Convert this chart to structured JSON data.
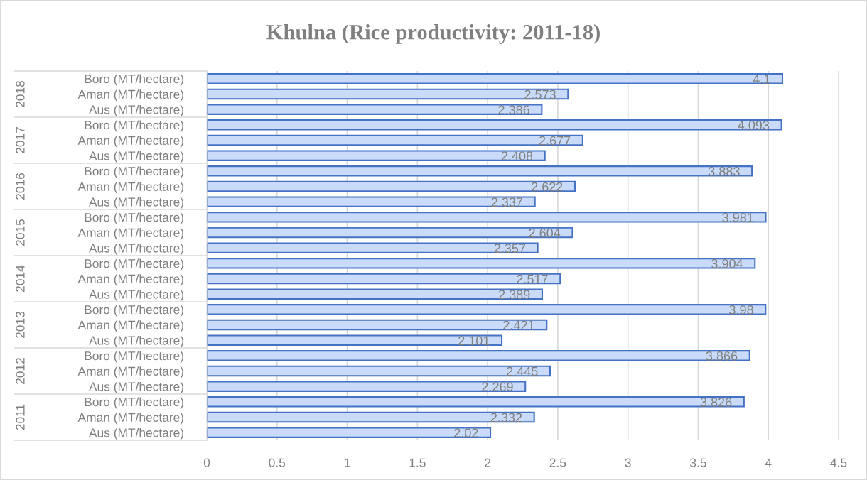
{
  "chart_data": {
    "type": "bar",
    "orientation": "horizontal",
    "title": "Khulna (Rice productivity: 2011-18)",
    "categories": [
      "Boro (MT/hectare)",
      "Aman (MT/hectare)",
      "Aus (MT/hectare)",
      "Boro (MT/hectare)",
      "Aman (MT/hectare)",
      "Aus (MT/hectare)",
      "Boro (MT/hectare)",
      "Aman (MT/hectare)",
      "Aus (MT/hectare)",
      "Boro (MT/hectare)",
      "Aman (MT/hectare)",
      "Aus (MT/hectare)",
      "Boro (MT/hectare)",
      "Aman (MT/hectare)",
      "Aus (MT/hectare)",
      "Boro (MT/hectare)",
      "Aman (MT/hectare)",
      "Aus (MT/hectare)",
      "Boro (MT/hectare)",
      "Aman (MT/hectare)",
      "Aus (MT/hectare)",
      "Boro (MT/hectare)",
      "Aman (MT/hectare)",
      "Aus (MT/hectare)"
    ],
    "values": [
      4.1,
      2.573,
      2.386,
      4.093,
      2.677,
      2.408,
      3.883,
      2.622,
      2.337,
      3.981,
      2.604,
      2.357,
      3.904,
      2.517,
      2.389,
      3.98,
      2.421,
      2.101,
      3.866,
      2.445,
      2.269,
      3.826,
      2.332,
      2.02
    ],
    "color": "#c9dbf8",
    "annotations": [
      "2018",
      "2017",
      "2016",
      "2015",
      "2014",
      "2013",
      "2012",
      "2011"
    ],
    "xlim": [
      0,
      4.5
    ],
    "xticks": [
      0,
      0.5,
      1,
      1.5,
      2,
      2.5,
      3,
      3.5,
      4,
      4.5
    ],
    "grid": "x",
    "data_labels": true
  }
}
